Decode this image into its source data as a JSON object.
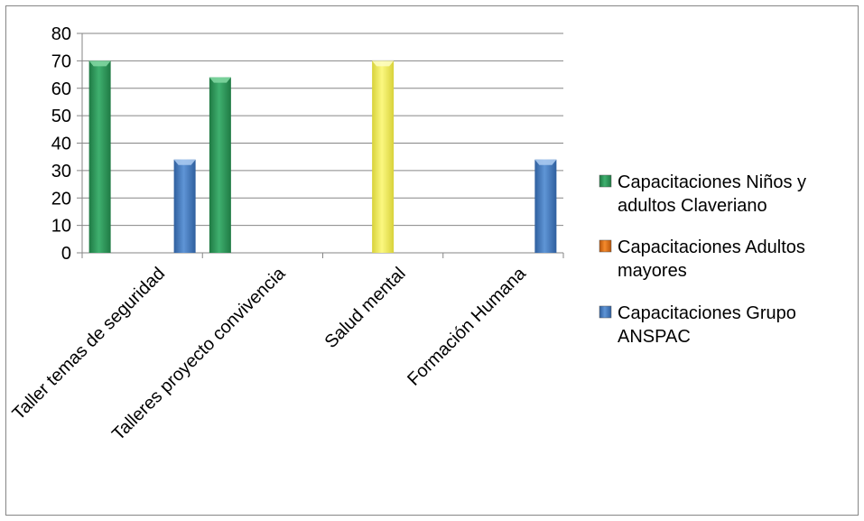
{
  "chart_data": {
    "type": "bar",
    "categories": [
      "Taller temas de seguridad",
      "Talleres proyecto convivencia",
      "Salud mental",
      "Formación Humana"
    ],
    "series": [
      {
        "name_lines": [
          "Capacitaciones  Niños y",
          "adultos Claveriano"
        ],
        "color": "#2e9a5c",
        "values": [
          70,
          64,
          null,
          null
        ]
      },
      {
        "name_lines": [
          "Capacitaciones  Adultos",
          "mayores"
        ],
        "color": "#e46c0a",
        "values": [
          null,
          null,
          null,
          null
        ]
      },
      {
        "name_lines": [
          "Capacitaciones  Grupo",
          "ANSPAC"
        ],
        "color": "#4a80c4",
        "values": [
          34,
          null,
          null,
          34
        ]
      }
    ],
    "highlight": {
      "category_index": 2,
      "value": 70,
      "color": "#f5f05a"
    },
    "y_ticks": [
      "0",
      "10",
      "20",
      "30",
      "40",
      "50",
      "60",
      "70",
      "80"
    ],
    "ylim": [
      0,
      80
    ],
    "grid": true,
    "legend_position": "right"
  }
}
